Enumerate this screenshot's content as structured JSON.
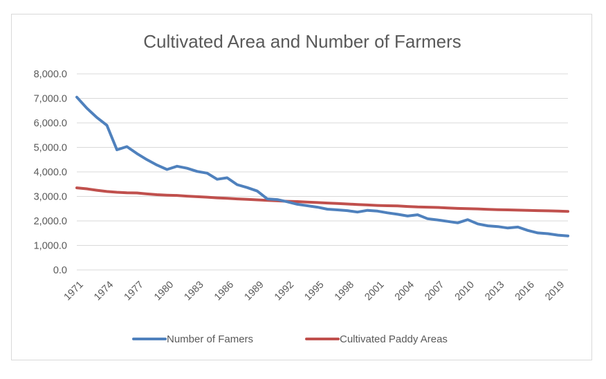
{
  "chart_data": {
    "type": "line",
    "title": "Cultivated Area and Number of Farmers",
    "xlabel": "",
    "ylabel": "",
    "ylim": [
      0,
      8000
    ],
    "y_ticks": [
      "0.0",
      "1,000.0",
      "2,000.0",
      "3,000.0",
      "4,000.0",
      "5,000.0",
      "6,000.0",
      "7,000.0",
      "8,000.0"
    ],
    "x": [
      1971,
      1972,
      1973,
      1974,
      1975,
      1976,
      1977,
      1978,
      1979,
      1980,
      1981,
      1982,
      1983,
      1984,
      1985,
      1986,
      1987,
      1988,
      1989,
      1990,
      1991,
      1992,
      1993,
      1994,
      1995,
      1996,
      1997,
      1998,
      1999,
      2000,
      2001,
      2002,
      2003,
      2004,
      2005,
      2006,
      2007,
      2008,
      2009,
      2010,
      2011,
      2012,
      2013,
      2014,
      2015,
      2016,
      2017,
      2018,
      2019,
      2020
    ],
    "x_tick_labels": [
      "1971",
      "1974",
      "1977",
      "1980",
      "1983",
      "1986",
      "1989",
      "1992",
      "1995",
      "1998",
      "2001",
      "2004",
      "2007",
      "2010",
      "2013",
      "2016",
      "2019"
    ],
    "legend_position": "bottom",
    "grid": true,
    "series": [
      {
        "name": "Number of Famers",
        "color": "#4f81bd",
        "values": [
          7050,
          6600,
          6220,
          5900,
          4900,
          5030,
          4750,
          4500,
          4280,
          4100,
          4230,
          4150,
          4020,
          3950,
          3700,
          3760,
          3480,
          3360,
          3220,
          2900,
          2870,
          2780,
          2680,
          2620,
          2560,
          2480,
          2450,
          2420,
          2360,
          2430,
          2400,
          2330,
          2270,
          2200,
          2250,
          2090,
          2040,
          1980,
          1920,
          2050,
          1880,
          1800,
          1770,
          1710,
          1750,
          1610,
          1510,
          1480,
          1420,
          1390
        ]
      },
      {
        "name": "Cultivated Paddy Areas",
        "color": "#c0504d",
        "values": [
          3350,
          3310,
          3250,
          3200,
          3170,
          3150,
          3140,
          3100,
          3070,
          3050,
          3040,
          3010,
          2990,
          2970,
          2940,
          2920,
          2900,
          2880,
          2860,
          2840,
          2820,
          2800,
          2790,
          2770,
          2750,
          2730,
          2710,
          2690,
          2670,
          2650,
          2630,
          2620,
          2610,
          2590,
          2570,
          2560,
          2550,
          2530,
          2510,
          2500,
          2490,
          2470,
          2460,
          2450,
          2440,
          2430,
          2420,
          2410,
          2400,
          2390
        ]
      }
    ]
  }
}
